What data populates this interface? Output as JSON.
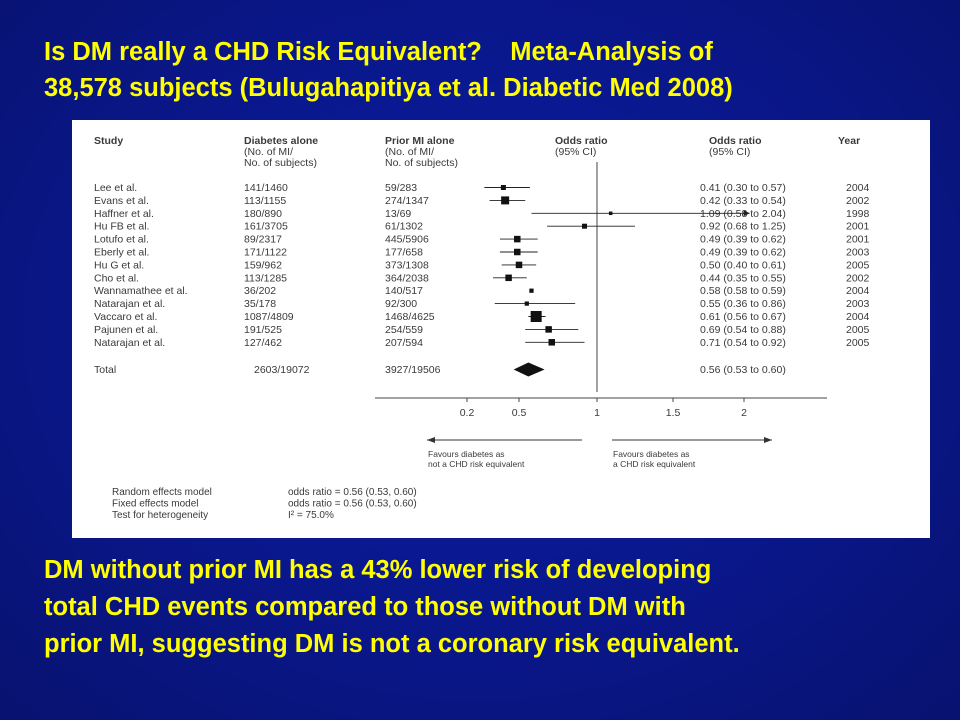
{
  "title": {
    "line1": "Is DM really a CHD Risk Equivalent?    Meta-Analysis of",
    "line2": "38,578 subjects (Bulugahapitiya et al. Diabetic Med 2008)"
  },
  "caption": {
    "line1": "DM without prior MI has a 43% lower risk of developing",
    "line2": "total CHD events compared to those without DM with",
    "line3": "prior MI, suggesting DM is not a coronary risk equivalent."
  },
  "chart_data": {
    "type": "forest",
    "columns": {
      "study": "Study",
      "dm": [
        "Diabetes alone",
        "(No. of MI/",
        "No. of subjects)"
      ],
      "mi": [
        "Prior MI alone",
        "(No. of MI/",
        "No. of subjects)"
      ],
      "or_plot": [
        "Odds ratio",
        "(95% CI)"
      ],
      "or_text": [
        "Odds ratio",
        "(95% CI)"
      ],
      "year": "Year"
    },
    "x_ticks": [
      "0.2",
      "0.5",
      "1",
      "1.5",
      "2"
    ],
    "x_tick_values": [
      0.2,
      0.5,
      1,
      1.5,
      2
    ],
    "studies": [
      {
        "name": "Lee et al.",
        "dm": "141/1460",
        "mi": "59/283",
        "or": 0.41,
        "lo": 0.3,
        "hi": 0.57,
        "ci": "0.41 (0.30 to 0.57)",
        "year": "2004",
        "weight": 2
      },
      {
        "name": "Evans et al.",
        "dm": "113/1155",
        "mi": "274/1347",
        "or": 0.42,
        "lo": 0.33,
        "hi": 0.54,
        "ci": "0.42 (0.33 to 0.54)",
        "year": "2002",
        "weight": 4
      },
      {
        "name": "Haffner et al.",
        "dm": "180/890",
        "mi": "13/69",
        "or": 1.09,
        "lo": 0.58,
        "hi": 2.04,
        "ci": "1.09 (0.58 to 2.04)",
        "year": "1998",
        "weight": 1
      },
      {
        "name": "Hu FB et al.",
        "dm": "161/3705",
        "mi": "61/1302",
        "or": 0.92,
        "lo": 0.68,
        "hi": 1.25,
        "ci": "0.92 (0.68 to 1.25)",
        "year": "2001",
        "weight": 2
      },
      {
        "name": "Lotufo et al.",
        "dm": "89/2317",
        "mi": "445/5906",
        "or": 0.49,
        "lo": 0.39,
        "hi": 0.62,
        "ci": "0.49 (0.39 to 0.62)",
        "year": "2001",
        "weight": 3
      },
      {
        "name": "Eberly et al.",
        "dm": "171/1122",
        "mi": "177/658",
        "or": 0.49,
        "lo": 0.39,
        "hi": 0.62,
        "ci": "0.49 (0.39 to 0.62)",
        "year": "2003",
        "weight": 3
      },
      {
        "name": "Hu G et al.",
        "dm": "159/962",
        "mi": "373/1308",
        "or": 0.5,
        "lo": 0.4,
        "hi": 0.61,
        "ci": "0.50 (0.40 to 0.61)",
        "year": "2005",
        "weight": 3
      },
      {
        "name": "Cho et al.",
        "dm": "113/1285",
        "mi": "364/2038",
        "or": 0.44,
        "lo": 0.35,
        "hi": 0.55,
        "ci": "0.44 (0.35 to 0.55)",
        "year": "2002",
        "weight": 3
      },
      {
        "name": "Wannamathee et al.",
        "dm": "36/202",
        "mi": "140/517",
        "or": 0.58,
        "lo": 0.58,
        "hi": 0.59,
        "ci": "0.58 (0.58 to 0.59)",
        "year": "2004",
        "weight": 1.5
      },
      {
        "name": "Natarajan et al.",
        "dm": "35/178",
        "mi": "92/300",
        "or": 0.55,
        "lo": 0.36,
        "hi": 0.86,
        "ci": "0.55 (0.36 to 0.86)",
        "year": "2003",
        "weight": 1.5
      },
      {
        "name": "Vaccaro et al.",
        "dm": "1087/4809",
        "mi": "1468/4625",
        "or": 0.61,
        "lo": 0.56,
        "hi": 0.67,
        "ci": "0.61 (0.56 to 0.67)",
        "year": "2004",
        "weight": 6
      },
      {
        "name": "Pajunen et al.",
        "dm": "191/525",
        "mi": "254/559",
        "or": 0.69,
        "lo": 0.54,
        "hi": 0.88,
        "ci": "0.69 (0.54 to 0.88)",
        "year": "2005",
        "weight": 3
      },
      {
        "name": "Natarajan et al.",
        "dm": "127/462",
        "mi": "207/594",
        "or": 0.71,
        "lo": 0.54,
        "hi": 0.92,
        "ci": "0.71 (0.54 to 0.92)",
        "year": "2005",
        "weight": 3
      }
    ],
    "total": {
      "name": "Total",
      "dm": "2603/19072",
      "mi": "3927/19506",
      "or": 0.56,
      "lo": 0.53,
      "hi": 0.6,
      "ci": "0.56 (0.53 to 0.60)"
    },
    "favours_left": [
      "Favours diabetes as",
      "not a CHD risk equivalent"
    ],
    "favours_right": [
      "Favours diabetes as",
      "a CHD risk equivalent"
    ],
    "models": [
      {
        "label": "Random effects model",
        "value": "odds ratio = 0.56 (0.53, 0.60)"
      },
      {
        "label": "Fixed effects model",
        "value": "odds ratio = 0.56 (0.53, 0.60)"
      },
      {
        "label": "Test for heterogeneity",
        "value": "I² = 75.0%"
      }
    ]
  }
}
